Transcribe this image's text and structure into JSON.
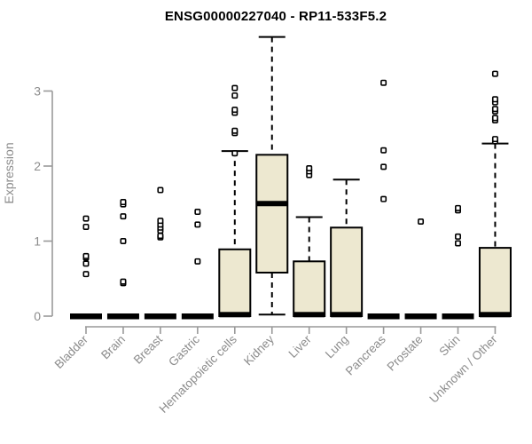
{
  "chart_data": {
    "type": "boxplot",
    "title": "ENSG00000227040 - RP11-533F5.2",
    "ylabel": "Expression",
    "yticks": [
      0,
      1,
      2,
      3
    ],
    "ylim": [
      0,
      3.85
    ],
    "grid": false,
    "legend": "none",
    "box_fill": "#EDE8D0",
    "box_stroke": "#000000",
    "axis_color": "#999999",
    "label_color": "#8c8c8c",
    "categories": [
      "Bladder",
      "Brain",
      "Breast",
      "Gastric",
      "Hematopoietic cells",
      "Kidney",
      "Liver",
      "Lung",
      "Pancreas",
      "Prostate",
      "Skin",
      "Unknown / Other"
    ],
    "boxes": [
      {
        "category": "Bladder",
        "collapsed": true,
        "q1": 0,
        "median": 0,
        "q3": 0,
        "whisker_low": 0,
        "whisker_high": 0,
        "outliers": [
          0.56,
          0.7,
          0.78,
          0.8,
          1.19,
          1.3
        ]
      },
      {
        "category": "Brain",
        "collapsed": true,
        "q1": 0,
        "median": 0,
        "q3": 0,
        "whisker_low": 0,
        "whisker_high": 0,
        "outliers": [
          0.44,
          0.46,
          1.0,
          1.33,
          1.49,
          1.52
        ]
      },
      {
        "category": "Breast",
        "collapsed": true,
        "q1": 0,
        "median": 0,
        "q3": 0,
        "whisker_low": 0,
        "whisker_high": 0,
        "outliers": [
          1.05,
          1.07,
          1.14,
          1.18,
          1.22,
          1.27,
          1.68
        ]
      },
      {
        "category": "Gastric",
        "collapsed": true,
        "q1": 0,
        "median": 0,
        "q3": 0,
        "whisker_low": 0,
        "whisker_high": 0,
        "outliers": [
          0.73,
          1.22,
          1.39
        ]
      },
      {
        "category": "Hematopoietic cells",
        "collapsed": false,
        "q1": 0,
        "median": 0.02,
        "q3": 0.89,
        "whisker_low": 0,
        "whisker_high": 2.2,
        "outliers": [
          2.17,
          2.44,
          2.47,
          2.71,
          2.75,
          2.94,
          3.04
        ]
      },
      {
        "category": "Kidney",
        "collapsed": false,
        "q1": 0.58,
        "median": 1.5,
        "q3": 2.15,
        "whisker_low": 0.02,
        "whisker_high": 3.72,
        "outliers": []
      },
      {
        "category": "Liver",
        "collapsed": false,
        "q1": 0,
        "median": 0.02,
        "q3": 0.73,
        "whisker_low": 0,
        "whisker_high": 1.32,
        "outliers": [
          1.88,
          1.93,
          1.97
        ]
      },
      {
        "category": "Lung",
        "collapsed": false,
        "q1": 0,
        "median": 0.02,
        "q3": 1.18,
        "whisker_low": 0,
        "whisker_high": 1.82,
        "outliers": []
      },
      {
        "category": "Pancreas",
        "collapsed": true,
        "q1": 0,
        "median": 0,
        "q3": 0,
        "whisker_low": 0,
        "whisker_high": 0,
        "outliers": [
          1.56,
          1.99,
          2.21,
          3.11
        ]
      },
      {
        "category": "Prostate",
        "collapsed": true,
        "q1": 0,
        "median": 0,
        "q3": 0,
        "whisker_low": 0,
        "whisker_high": 0,
        "outliers": [
          1.26
        ]
      },
      {
        "category": "Skin",
        "collapsed": true,
        "q1": 0,
        "median": 0,
        "q3": 0,
        "whisker_low": 0,
        "whisker_high": 0,
        "outliers": [
          0.97,
          1.06,
          1.41,
          1.44
        ]
      },
      {
        "category": "Unknown / Other",
        "collapsed": false,
        "q1": 0,
        "median": 0.02,
        "q3": 0.91,
        "whisker_low": 0,
        "whisker_high": 2.3,
        "outliers": [
          2.33,
          2.36,
          2.61,
          2.64,
          2.73,
          2.76,
          2.85,
          2.89,
          3.23
        ]
      }
    ]
  }
}
